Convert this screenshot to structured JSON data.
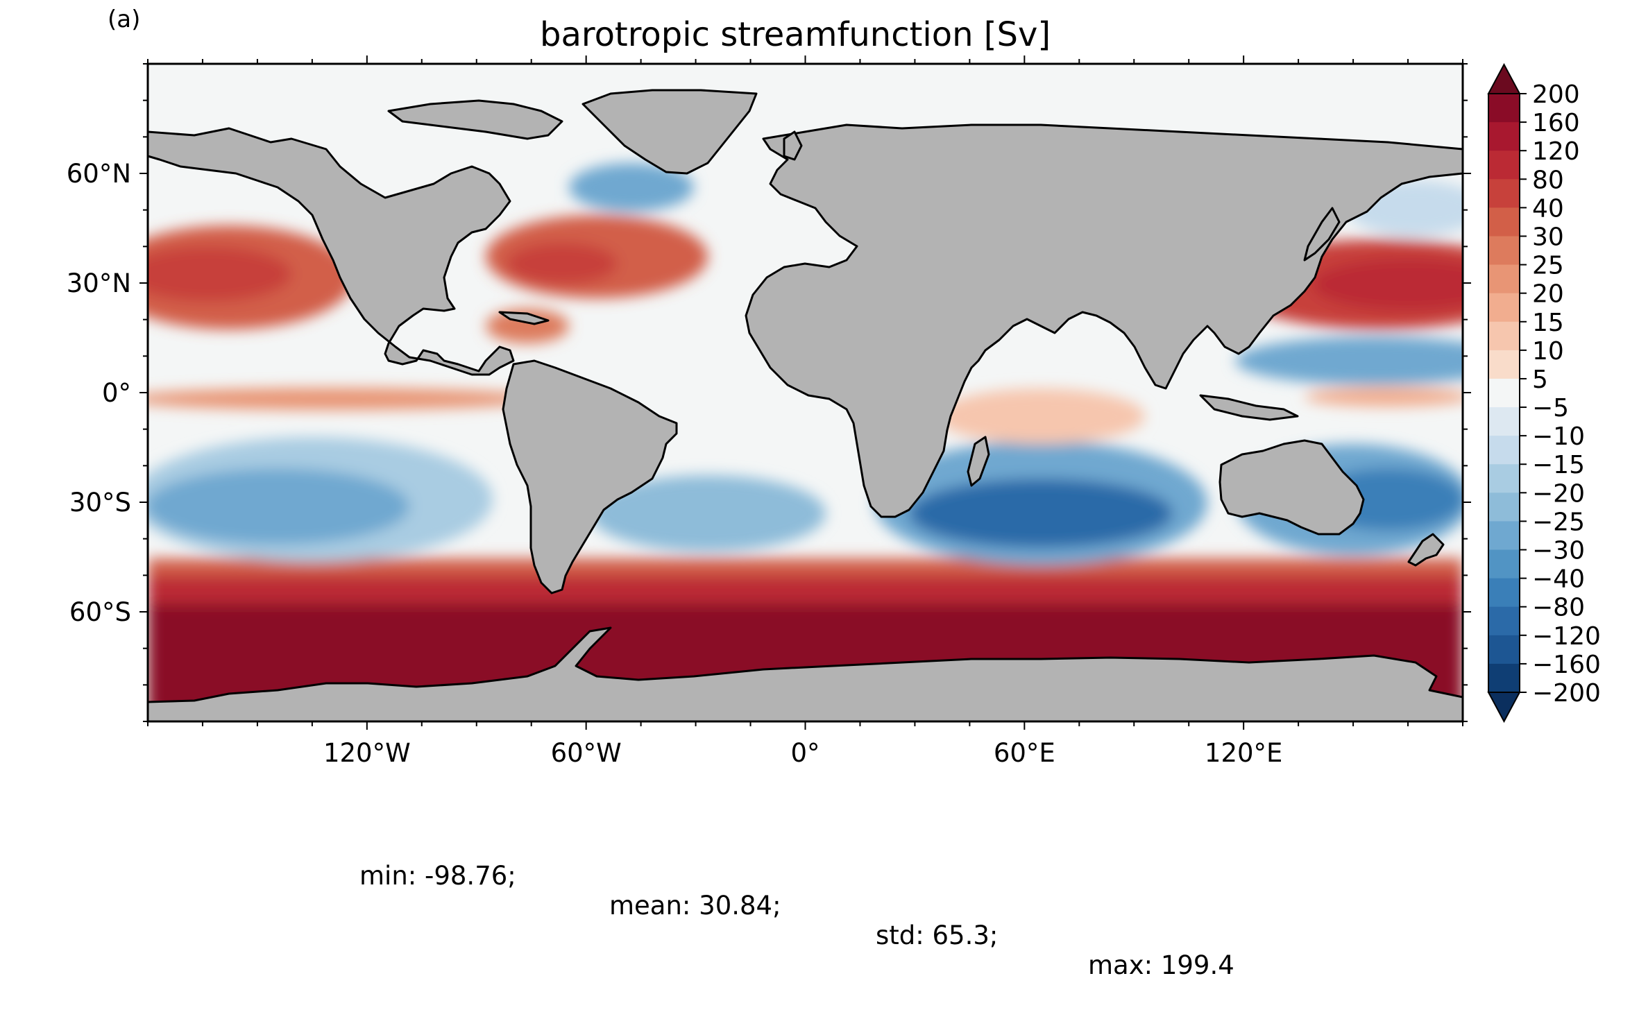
{
  "panel_label": "(a)",
  "title": "barotropic streamfunction [Sv]",
  "stats": {
    "min": "min: -98.76;",
    "mean": "mean: 30.84;",
    "std": "std: 65.3;",
    "max": "max: 199.4"
  },
  "colors": {
    "land": "#b3b3b3",
    "coast": "#000000",
    "neutral_ocean": "#f4f6f6"
  },
  "chart_data": {
    "type": "heatmap",
    "projection": "plate carree",
    "x_ticks": [
      "120°W",
      "60°W",
      "0°",
      "60°E",
      "120°E"
    ],
    "x_tick_values": [
      -120,
      -60,
      0,
      60,
      120
    ],
    "y_ticks": [
      "60°N",
      "30°N",
      "0°",
      "30°S",
      "60°S"
    ],
    "y_tick_values": [
      60,
      30,
      0,
      -30,
      -60
    ],
    "xlim": [
      -180,
      180
    ],
    "ylim": [
      -90,
      90
    ],
    "colorbar": {
      "labels": [
        "200",
        "160",
        "120",
        "80",
        "40",
        "30",
        "25",
        "20",
        "15",
        "10",
        "5",
        "−5",
        "−10",
        "−15",
        "−20",
        "−25",
        "−30",
        "−40",
        "−80",
        "−120",
        "−160",
        "−200"
      ],
      "colors": [
        "#8a0c27",
        "#a8182f",
        "#bb2a34",
        "#c7413b",
        "#d25f48",
        "#dd7b5d",
        "#e89575",
        "#f1ad8f",
        "#f6c6ae",
        "#f9dcca",
        "#f4f6f6",
        "#dde8f1",
        "#c6dbec",
        "#a9cce2",
        "#8ebcd9",
        "#6fa8d0",
        "#5194c4",
        "#3a7fb8",
        "#2b6aa8",
        "#1d5693",
        "#0f3e74"
      ],
      "extend": "both",
      "top_extension_color": "#6b0a1f",
      "bottom_extension_color": "#0b2f5e"
    }
  }
}
